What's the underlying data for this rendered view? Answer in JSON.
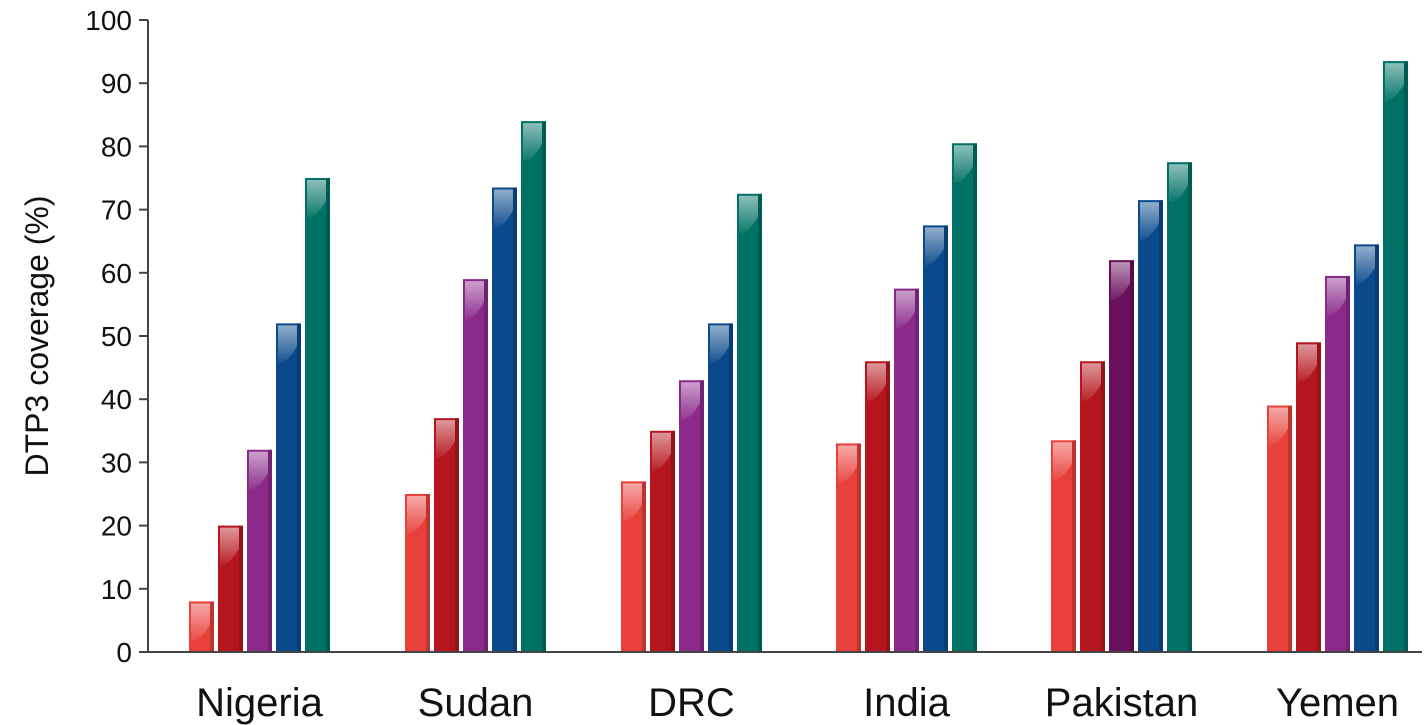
{
  "chart_data": {
    "type": "bar",
    "title": "",
    "xlabel": "",
    "ylabel": "DTP3 coverage (%)",
    "ylim": [
      0,
      100
    ],
    "yticks": [
      "0",
      "10",
      "20",
      "30",
      "40",
      "50",
      "60",
      "70",
      "80",
      "90",
      "100"
    ],
    "grid": false,
    "legend": "none",
    "categories": [
      "Nigeria",
      "Sudan",
      "DRC",
      "India",
      "Pakistan",
      "Yemen"
    ],
    "series": [
      {
        "color": "#e8403a",
        "values": [
          8,
          25,
          27,
          33,
          33.5,
          39
        ]
      },
      {
        "color": "#b5161e",
        "values": [
          20,
          37,
          35,
          46,
          46,
          49
        ]
      },
      {
        "color": "#8b2a8b",
        "values": [
          32,
          59,
          43,
          57.5,
          62,
          59.5
        ]
      },
      {
        "color": "#0a4a8c",
        "values": [
          52,
          73.5,
          52,
          67.5,
          71.5,
          64.5
        ]
      },
      {
        "color": "#007165",
        "values": [
          75,
          84,
          72.5,
          80.5,
          77.5,
          93.5
        ]
      }
    ],
    "bar_color_overrides": [
      {
        "category": "Pakistan",
        "series_index": 2,
        "color": "#6a0f5c"
      }
    ]
  }
}
